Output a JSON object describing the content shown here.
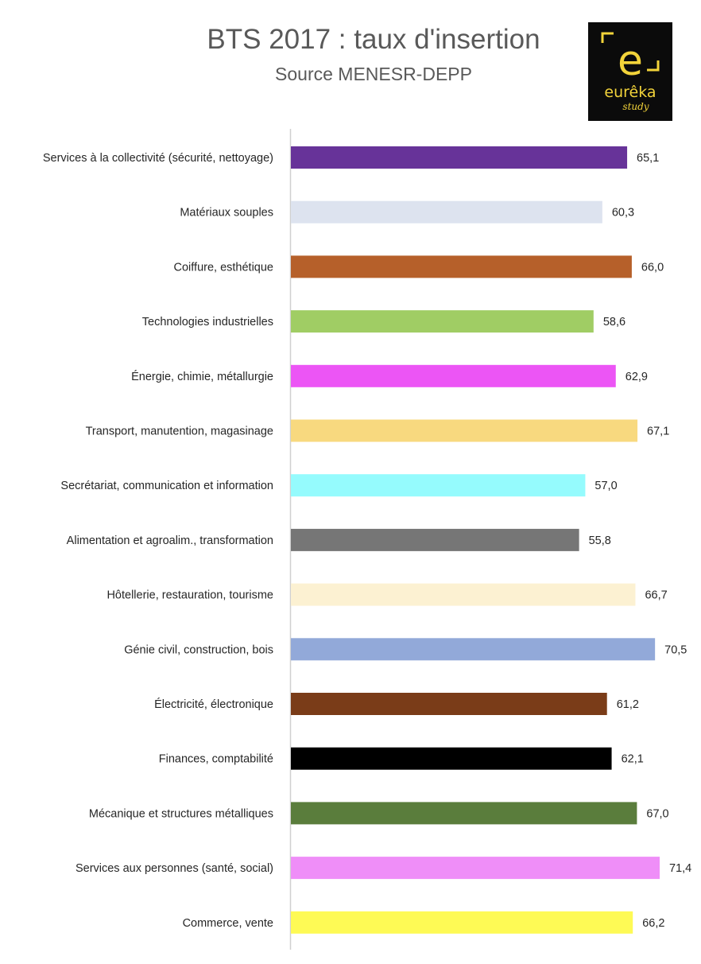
{
  "title": "BTS 2017 : taux d'insertion",
  "subtitle": "Source  MENESR-DEPP",
  "logo": {
    "letter": "e",
    "name": "eurêka",
    "tagline": "study",
    "color": "#f2d33a"
  },
  "chart_data": {
    "type": "bar",
    "orientation": "horizontal",
    "title": "BTS 2017 : taux d'insertion",
    "subtitle": "Source  MENESR-DEPP",
    "xlabel": "",
    "ylabel": "",
    "xlim": [
      0,
      80
    ],
    "grid": false,
    "categories": [
      "Services à la collectivité (sécurité, nettoyage)",
      "Matériaux souples",
      "Coiffure, esthétique",
      "Technologies industrielles",
      "Énergie, chimie, métallurgie",
      "Transport, manutention, magasinage",
      "Secrétariat, communication et information",
      "Alimentation et agroalim., transformation",
      "Hôtellerie, restauration, tourisme",
      "Génie civil, construction, bois",
      "Électricité, électronique",
      "Finances, comptabilité",
      "Mécanique et structures métalliques",
      "Services aux personnes (santé, social)",
      "Commerce, vente"
    ],
    "values": [
      65.1,
      60.3,
      66.0,
      58.6,
      62.9,
      67.1,
      57.0,
      55.8,
      66.7,
      70.5,
      61.2,
      62.1,
      67.0,
      71.4,
      66.2
    ],
    "value_labels": [
      "65,1",
      "60,3",
      "66,0",
      "58,6",
      "62,9",
      "67,1",
      "57,0",
      "55,8",
      "66,7",
      "70,5",
      "61,2",
      "62,1",
      "67,0",
      "71,4",
      "66,2"
    ],
    "colors": [
      "#673399",
      "#dde3ef",
      "#b6602a",
      "#a0cd64",
      "#ec55f5",
      "#f8d97f",
      "#95fbfd",
      "#767676",
      "#fcf1d2",
      "#92a9d9",
      "#7a3c18",
      "#000000",
      "#5a7d3c",
      "#ef8ef8",
      "#fefa55"
    ]
  }
}
